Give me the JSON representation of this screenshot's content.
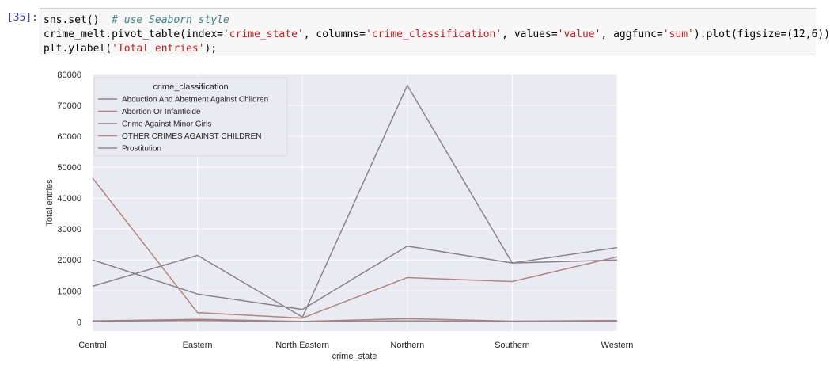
{
  "cell": {
    "prompt": "[35]:",
    "line1_code": "sns.set()  ",
    "line1_comment": "# use Seaborn style",
    "line2_a": "crime_melt.pivot_table(index=",
    "line2_s1": "'crime_state'",
    "line2_b": ", columns=",
    "line2_s2": "'crime_classification'",
    "line2_c": ", values=",
    "line2_s3": "'value'",
    "line2_d": ", aggfunc=",
    "line2_s4": "'sum'",
    "line2_e": ").plot(figsize=(12,6))",
    "line3_a": "plt.ylabel(",
    "line3_s": "'Total entries'",
    "line3_b": ");"
  },
  "chart_data": {
    "type": "line",
    "xlabel": "crime_state",
    "ylabel": "Total entries",
    "categories": [
      "Central",
      "Eastern",
      "North Eastern",
      "Northern",
      "Southern",
      "Western"
    ],
    "ylim": [
      -3000,
      80000
    ],
    "yticks": [
      0,
      10000,
      20000,
      30000,
      40000,
      50000,
      60000,
      70000,
      80000
    ],
    "grid": true,
    "legend_title": "crime_classification",
    "legend_position": "top-left",
    "series": [
      {
        "name": "Abduction And Abetment Against Children",
        "color": "#8a7f8f",
        "values": [
          20000,
          9000,
          4000,
          24500,
          19000,
          20000
        ]
      },
      {
        "name": "Abortion Or Infanticide",
        "color": "#b07f7a",
        "values": [
          300,
          800,
          100,
          1000,
          200,
          400
        ]
      },
      {
        "name": "Crime Against Minor Girls",
        "color": "#8d8190",
        "values": [
          11500,
          21500,
          1500,
          76500,
          19000,
          24000
        ]
      },
      {
        "name": "OTHER CRIMES AGAINST CHILDREN",
        "color": "#b08582",
        "values": [
          46500,
          3000,
          1200,
          14300,
          13000,
          21000
        ]
      },
      {
        "name": "Prostitution",
        "color": "#93858f",
        "values": [
          200,
          400,
          50,
          300,
          100,
          200
        ]
      }
    ]
  }
}
